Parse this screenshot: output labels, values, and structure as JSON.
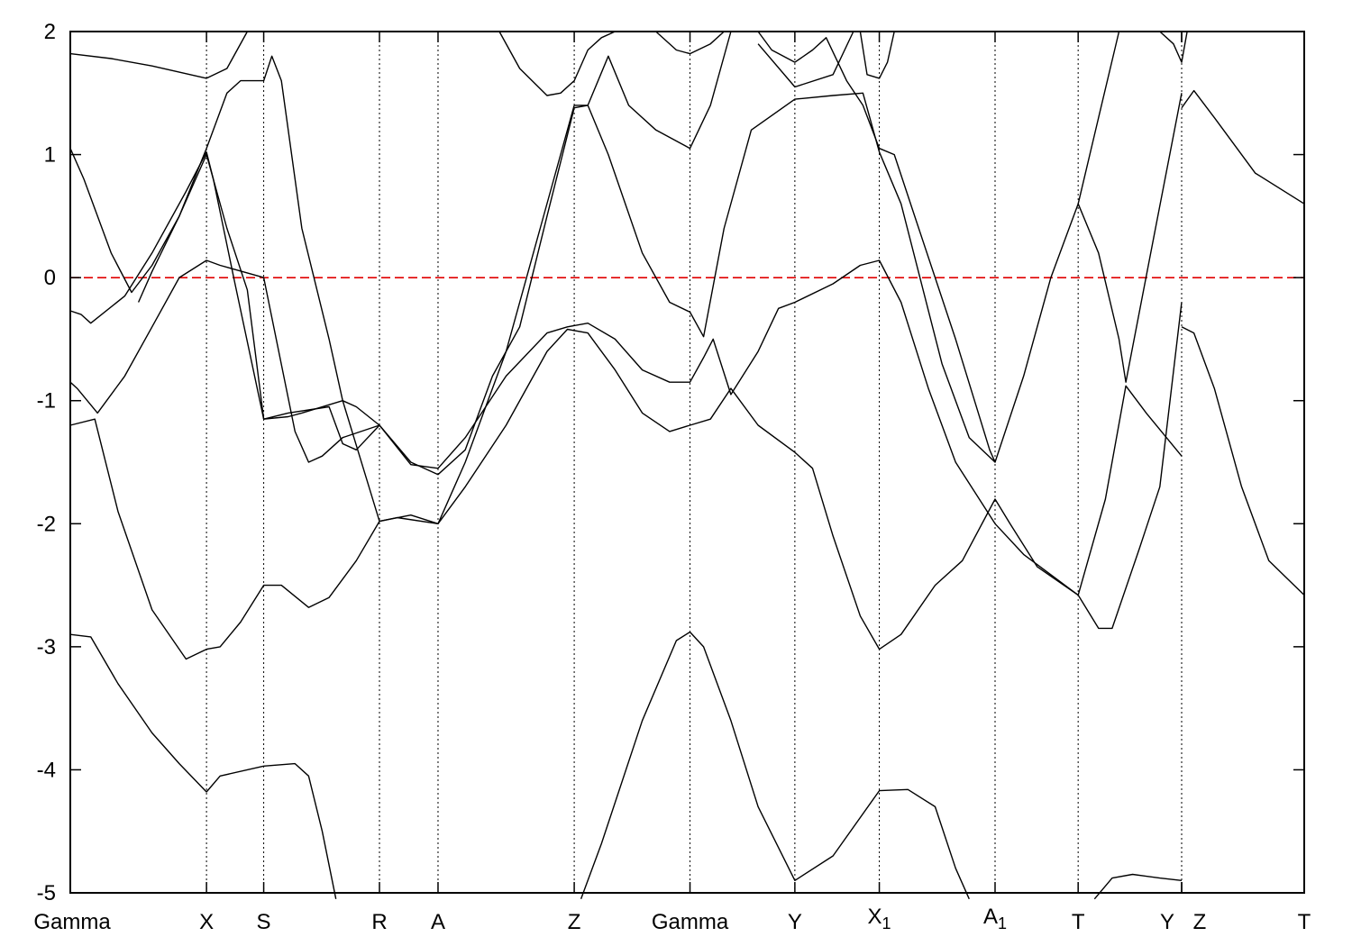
{
  "chart_data": {
    "type": "line",
    "title": "",
    "xlabel": "",
    "ylabel": "",
    "ylim": [
      -5,
      2
    ],
    "yticks": [
      2,
      1,
      0,
      -1,
      -2,
      -3,
      -4,
      -5
    ],
    "grid": "vertical dotted lines at high-symmetry points",
    "legend": "none",
    "fermi_level": {
      "y": 0,
      "color": "#e00000"
    },
    "kpoints": [
      {
        "label": "Gamma",
        "sub": "",
        "x": 0.0
      },
      {
        "label": "X",
        "sub": "",
        "x": 1.0
      },
      {
        "label": "S",
        "sub": "",
        "x": 1.42
      },
      {
        "label": "R",
        "sub": "",
        "x": 2.27
      },
      {
        "label": "A",
        "sub": "",
        "x": 2.7
      },
      {
        "label": "Z",
        "sub": "",
        "x": 3.7
      },
      {
        "label": "Gamma",
        "sub": "",
        "x": 4.55
      },
      {
        "label": "Y",
        "sub": "",
        "x": 5.32
      },
      {
        "label": "X",
        "sub": "1",
        "x": 5.94
      },
      {
        "label": "A",
        "sub": "1",
        "x": 6.79
      },
      {
        "label": "T",
        "sub": "",
        "x": 7.4
      },
      {
        "label": "Y",
        "sub": "",
        "x": 8.16
      },
      {
        "label": "Z",
        "sub": "",
        "x": 8.16
      },
      {
        "label": "T",
        "sub": "",
        "x": 9.06
      }
    ],
    "xlim": [
      0,
      9.06
    ],
    "series": [
      {
        "values": [
          [
            0,
            -2.9
          ],
          [
            0.15,
            -2.92
          ],
          [
            0.35,
            -3.3
          ],
          [
            0.6,
            -3.7
          ],
          [
            0.8,
            -3.95
          ],
          [
            1.0,
            -4.18
          ],
          [
            1.1,
            -4.05
          ],
          [
            1.42,
            -3.97
          ],
          [
            1.65,
            -3.95
          ],
          [
            1.75,
            -4.05
          ],
          [
            1.85,
            -4.5
          ],
          [
            1.95,
            -5.05
          ]
        ]
      },
      {
        "values": [
          [
            0,
            -1.2
          ],
          [
            0.18,
            -1.15
          ],
          [
            0.35,
            -1.9
          ],
          [
            0.6,
            -2.7
          ],
          [
            0.85,
            -3.1
          ],
          [
            1.0,
            -3.02
          ],
          [
            1.1,
            -3.0
          ],
          [
            1.25,
            -2.8
          ],
          [
            1.42,
            -2.5
          ],
          [
            1.55,
            -2.5
          ],
          [
            1.75,
            -2.68
          ],
          [
            1.9,
            -2.6
          ],
          [
            2.1,
            -2.3
          ],
          [
            2.27,
            -1.98
          ],
          [
            2.5,
            -1.93
          ],
          [
            2.7,
            -2.0
          ],
          [
            2.9,
            -1.7
          ],
          [
            3.2,
            -1.2
          ],
          [
            3.5,
            -0.6
          ],
          [
            3.65,
            -0.42
          ],
          [
            3.8,
            -0.45
          ],
          [
            4.0,
            -0.75
          ],
          [
            4.2,
            -1.1
          ],
          [
            4.4,
            -1.25
          ],
          [
            4.55,
            -1.2
          ],
          [
            4.7,
            -1.15
          ],
          [
            4.85,
            -0.9
          ],
          [
            5.05,
            -1.2
          ],
          [
            5.32,
            -1.42
          ],
          [
            5.45,
            -1.55
          ],
          [
            5.6,
            -2.1
          ],
          [
            5.8,
            -2.75
          ],
          [
            5.94,
            -3.02
          ],
          [
            6.1,
            -2.9
          ],
          [
            6.35,
            -2.5
          ],
          [
            6.55,
            -2.3
          ],
          [
            6.79,
            -1.8
          ],
          [
            6.9,
            -2.0
          ],
          [
            7.1,
            -2.35
          ],
          [
            7.4,
            -2.58
          ],
          [
            7.55,
            -2.85
          ],
          [
            7.65,
            -2.85
          ],
          [
            7.85,
            -2.2
          ],
          [
            8.0,
            -1.7
          ],
          [
            8.16,
            -0.2
          ]
        ]
      },
      {
        "values": [
          [
            0,
            -0.85
          ],
          [
            0.05,
            -0.9
          ],
          [
            0.2,
            -1.1
          ],
          [
            0.4,
            -0.8
          ],
          [
            0.6,
            -0.4
          ],
          [
            0.8,
            0.0
          ],
          [
            1.0,
            0.14
          ],
          [
            1.1,
            0.1
          ],
          [
            1.42,
            0.0
          ],
          [
            1.65,
            -1.25
          ],
          [
            1.75,
            -1.5
          ],
          [
            1.85,
            -1.45
          ],
          [
            2.0,
            -1.3
          ],
          [
            2.27,
            -1.2
          ],
          [
            2.5,
            -1.52
          ],
          [
            2.7,
            -1.55
          ],
          [
            2.9,
            -1.3
          ],
          [
            3.2,
            -0.8
          ],
          [
            3.5,
            -0.45
          ],
          [
            3.65,
            -0.4
          ],
          [
            3.8,
            -0.37
          ],
          [
            4.0,
            -0.5
          ],
          [
            4.2,
            -0.75
          ],
          [
            4.4,
            -0.85
          ],
          [
            4.55,
            -0.85
          ],
          [
            4.65,
            -0.65
          ],
          [
            4.72,
            -0.5
          ],
          [
            4.85,
            -0.95
          ],
          [
            5.05,
            -0.6
          ],
          [
            5.2,
            -0.25
          ],
          [
            5.32,
            -0.2
          ],
          [
            5.6,
            -0.05
          ],
          [
            5.8,
            0.1
          ],
          [
            5.94,
            0.14
          ],
          [
            6.1,
            -0.2
          ],
          [
            6.3,
            -0.9
          ],
          [
            6.5,
            -1.5
          ],
          [
            6.79,
            -2.0
          ],
          [
            7.0,
            -2.25
          ],
          [
            7.4,
            -2.58
          ],
          [
            7.6,
            -1.8
          ],
          [
            7.75,
            -0.88
          ],
          [
            7.9,
            -1.1
          ],
          [
            8.16,
            -1.45
          ]
        ]
      },
      {
        "values": [
          [
            0,
            -0.27
          ],
          [
            0.08,
            -0.3
          ],
          [
            0.15,
            -0.37
          ],
          [
            0.4,
            -0.15
          ],
          [
            0.6,
            0.2
          ],
          [
            0.85,
            0.7
          ],
          [
            1.0,
            1.02
          ],
          [
            1.05,
            0.8
          ],
          [
            1.2,
            0.0
          ],
          [
            1.42,
            -1.15
          ],
          [
            1.6,
            -1.1
          ],
          [
            1.9,
            -1.05
          ],
          [
            2.0,
            -1.35
          ],
          [
            2.1,
            -1.4
          ],
          [
            2.27,
            -1.2
          ],
          [
            2.5,
            -1.5
          ],
          [
            2.7,
            -1.6
          ],
          [
            2.9,
            -1.4
          ],
          [
            3.1,
            -0.8
          ],
          [
            3.3,
            -0.4
          ],
          [
            3.5,
            0.5
          ],
          [
            3.7,
            1.38
          ],
          [
            3.8,
            1.4
          ],
          [
            3.95,
            1.8
          ],
          [
            4.1,
            1.4
          ],
          [
            4.3,
            1.2
          ],
          [
            4.55,
            1.05
          ],
          [
            4.7,
            1.4
          ],
          [
            4.85,
            2.0
          ]
        ]
      },
      {
        "values": [
          [
            0,
            1.05
          ],
          [
            0.1,
            0.8
          ],
          [
            0.3,
            0.2
          ],
          [
            0.45,
            -0.12
          ],
          [
            0.6,
            0.1
          ],
          [
            0.8,
            0.5
          ],
          [
            1.0,
            1.0
          ],
          [
            1.15,
            0.4
          ],
          [
            1.3,
            -0.1
          ],
          [
            1.42,
            -1.15
          ],
          [
            1.6,
            -1.13
          ],
          [
            1.7,
            -1.1
          ],
          [
            2.0,
            -1.0
          ],
          [
            2.27,
            -1.98
          ],
          [
            2.4,
            -1.95
          ],
          [
            2.7,
            -2.0
          ],
          [
            2.9,
            -1.5
          ],
          [
            3.2,
            -0.6
          ],
          [
            3.45,
            0.4
          ],
          [
            3.7,
            1.4
          ],
          [
            3.8,
            1.4
          ],
          [
            3.95,
            1.0
          ],
          [
            4.2,
            0.2
          ],
          [
            4.4,
            -0.2
          ],
          [
            4.55,
            -0.28
          ],
          [
            4.65,
            -0.48
          ],
          [
            4.8,
            0.4
          ],
          [
            5.0,
            1.2
          ],
          [
            5.32,
            1.45
          ],
          [
            5.6,
            1.48
          ],
          [
            5.82,
            1.5
          ],
          [
            5.94,
            1.02
          ],
          [
            6.1,
            0.6
          ],
          [
            6.4,
            -0.7
          ],
          [
            6.6,
            -1.3
          ],
          [
            6.79,
            -1.5
          ],
          [
            7.0,
            -0.8
          ],
          [
            7.2,
            0.0
          ],
          [
            7.4,
            0.6
          ],
          [
            7.55,
            0.2
          ],
          [
            7.7,
            -0.5
          ],
          [
            7.75,
            -0.85
          ],
          [
            7.95,
            0.3
          ],
          [
            8.16,
            1.5
          ]
        ]
      },
      {
        "values": [
          [
            0,
            1.82
          ],
          [
            0.3,
            1.78
          ],
          [
            0.6,
            1.72
          ],
          [
            1.0,
            1.62
          ],
          [
            1.15,
            1.7
          ],
          [
            1.3,
            2.0
          ]
        ]
      },
      {
        "values": [
          [
            0.5,
            -0.2
          ],
          [
            0.6,
            0.05
          ],
          [
            0.8,
            0.5
          ],
          [
            1.0,
            1.05
          ],
          [
            1.15,
            1.5
          ],
          [
            1.25,
            1.6
          ],
          [
            1.42,
            1.6
          ],
          [
            1.48,
            1.8
          ],
          [
            1.55,
            1.6
          ],
          [
            1.7,
            0.4
          ],
          [
            1.9,
            -0.5
          ],
          [
            2.0,
            -1.0
          ],
          [
            2.1,
            -1.05
          ],
          [
            2.27,
            -1.2
          ]
        ]
      },
      {
        "values": [
          [
            3.15,
            2.0
          ],
          [
            3.3,
            1.7
          ],
          [
            3.5,
            1.48
          ],
          [
            3.6,
            1.5
          ],
          [
            3.7,
            1.6
          ],
          [
            3.8,
            1.85
          ],
          [
            3.9,
            1.95
          ],
          [
            4.0,
            2.0
          ]
        ]
      },
      {
        "values": [
          [
            4.3,
            2.0
          ],
          [
            4.45,
            1.85
          ],
          [
            4.55,
            1.82
          ],
          [
            4.7,
            1.9
          ],
          [
            4.8,
            2.0
          ]
        ]
      },
      {
        "values": [
          [
            5.05,
            2.0
          ],
          [
            5.15,
            1.85
          ],
          [
            5.32,
            1.75
          ],
          [
            5.45,
            1.85
          ],
          [
            5.55,
            1.95
          ],
          [
            5.7,
            1.6
          ],
          [
            5.82,
            1.4
          ],
          [
            5.94,
            1.05
          ],
          [
            6.05,
            1.0
          ],
          [
            6.2,
            0.5
          ],
          [
            6.5,
            -0.5
          ],
          [
            6.75,
            -1.4
          ],
          [
            6.79,
            -1.5
          ]
        ]
      },
      {
        "values": [
          [
            5.05,
            1.9
          ],
          [
            5.32,
            1.55
          ],
          [
            5.6,
            1.65
          ],
          [
            5.75,
            2.0
          ]
        ]
      },
      {
        "values": [
          [
            5.8,
            2.0
          ],
          [
            5.85,
            1.65
          ],
          [
            5.94,
            1.62
          ],
          [
            6.0,
            1.75
          ],
          [
            6.05,
            2.0
          ]
        ]
      },
      {
        "values": [
          [
            7.4,
            0.6
          ],
          [
            7.55,
            1.3
          ],
          [
            7.7,
            2.0
          ]
        ]
      },
      {
        "values": [
          [
            8.0,
            2.0
          ],
          [
            8.1,
            1.9
          ],
          [
            8.16,
            1.75
          ],
          [
            8.2,
            2.0
          ]
        ]
      },
      {
        "values": [
          [
            8.16,
            1.38
          ],
          [
            8.25,
            1.52
          ],
          [
            8.4,
            1.3
          ],
          [
            8.7,
            0.85
          ],
          [
            9.06,
            0.6
          ]
        ]
      },
      {
        "values": [
          [
            8.16,
            -0.4
          ],
          [
            8.25,
            -0.45
          ],
          [
            8.4,
            -0.9
          ],
          [
            8.6,
            -1.7
          ],
          [
            8.8,
            -2.3
          ],
          [
            9.06,
            -2.58
          ]
        ]
      },
      {
        "values": [
          [
            3.75,
            -5.05
          ],
          [
            3.9,
            -4.6
          ],
          [
            4.2,
            -3.6
          ],
          [
            4.45,
            -2.95
          ],
          [
            4.55,
            -2.88
          ],
          [
            4.65,
            -3.0
          ],
          [
            4.85,
            -3.6
          ],
          [
            5.05,
            -4.3
          ],
          [
            5.32,
            -4.9
          ],
          [
            5.6,
            -4.7
          ],
          [
            5.94,
            -4.17
          ],
          [
            6.15,
            -4.16
          ],
          [
            6.35,
            -4.3
          ],
          [
            6.5,
            -4.8
          ],
          [
            6.6,
            -5.05
          ]
        ]
      },
      {
        "values": [
          [
            7.52,
            -5.05
          ],
          [
            7.65,
            -4.88
          ],
          [
            7.8,
            -4.85
          ],
          [
            8.0,
            -4.88
          ],
          [
            8.16,
            -4.9
          ]
        ]
      }
    ]
  }
}
